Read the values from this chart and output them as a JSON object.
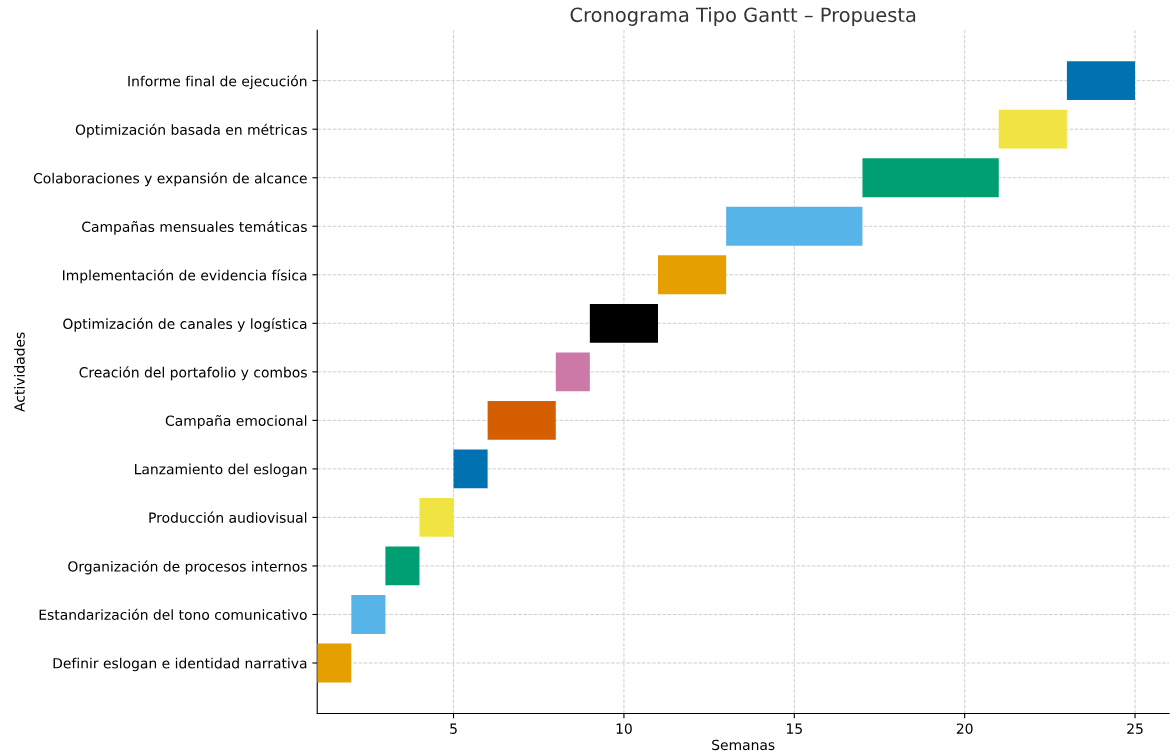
{
  "chart_data": {
    "type": "bar",
    "orientation": "horizontal",
    "title": "Cronograma Tipo Gantt – Propuesta",
    "xlabel": "Semanas",
    "ylabel": "Actividades",
    "categories": [
      "Informe final de ejecución",
      "Optimización basada en métricas",
      "Colaboraciones y expansión de alcance",
      "Campañas mensuales temáticas",
      "Implementación de evidencia física",
      "Optimización de canales y logística",
      "Creación del portafolio y combos",
      "Campaña emocional",
      "Lanzamiento del eslogan",
      "Producción audiovisual",
      "Organización de procesos internos",
      "Estandarización del tono comunicativo",
      "Definir eslogan e identidad narrativa"
    ],
    "base": [
      23,
      21,
      17,
      13,
      11,
      9,
      8,
      6,
      5,
      4,
      3,
      2,
      1
    ],
    "values": [
      2,
      2,
      4,
      4,
      2,
      2,
      1,
      2,
      1,
      1,
      1,
      1,
      1
    ],
    "colors": [
      "#0072b2",
      "#f0e442",
      "#009e73",
      "#56b4e9",
      "#e69f00",
      "#000000",
      "#cc79a7",
      "#d55e00",
      "#0072b2",
      "#f0e442",
      "#009e73",
      "#56b4e9",
      "#e69f00"
    ],
    "xlim": [
      1,
      26
    ],
    "xticks": [
      5,
      10,
      15,
      20,
      25
    ],
    "grid": true
  }
}
